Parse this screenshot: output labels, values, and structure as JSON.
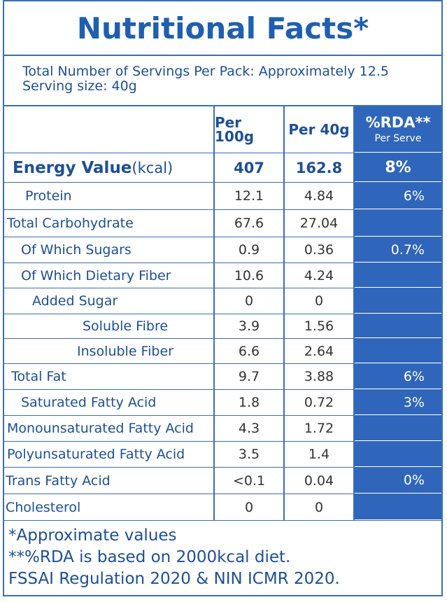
{
  "header": {
    "title": "Nutritional Facts*",
    "servings": "Total Number of Servings Per Pack: Approximately 12.5",
    "serving_size": "Serving size: 40g"
  },
  "table": {
    "columns": [
      "Per 100g",
      "Per 40g",
      "%RDA**"
    ],
    "rda_sub": "Per Serve",
    "rows": [
      {
        "label": "Energy Value",
        "unit": "(kcal)",
        "per100g": "407",
        "per40g": "162.8",
        "rda": "8%"
      },
      {
        "label": "Protein",
        "per100g": "12.1",
        "per40g": "4.84",
        "rda": "6%"
      },
      {
        "label": "Total Carbohydrate",
        "per100g": "67.6",
        "per40g": "27.04",
        "rda": null
      },
      {
        "label": "Of Which Sugars",
        "per100g": "0.9",
        "per40g": "0.36",
        "rda": "0.7%"
      },
      {
        "label": "Of Which Dietary Fiber",
        "per100g": "10.6",
        "per40g": "4.24",
        "rda": null
      },
      {
        "label": "Added Sugar",
        "per100g": "0",
        "per40g": "0",
        "rda": null
      },
      {
        "label": "Soluble Fibre",
        "per100g": "3.9",
        "per40g": "1.56",
        "rda": null
      },
      {
        "label": "Insoluble Fiber",
        "per100g": "6.6",
        "per40g": "2.64",
        "rda": null
      },
      {
        "label": "Total Fat",
        "per100g": "9.7",
        "per40g": "3.88",
        "rda": "6%"
      },
      {
        "label": "Saturated Fatty Acid",
        "per100g": "1.8",
        "per40g": "0.72",
        "rda": "3%"
      },
      {
        "label": "Monounsaturated Fatty Acid",
        "per100g": "4.3",
        "per40g": "1.72",
        "rda": null
      },
      {
        "label": "Polyunsaturated Fatty Acid",
        "per100g": "3.5",
        "per40g": "1.4",
        "rda": null
      },
      {
        "label": "Trans Fatty Acid",
        "per100g": "<0.1",
        "per40g": "0.04",
        "rda": "0%"
      },
      {
        "label": "Cholesterol",
        "per100g": "0",
        "per40g": "0",
        "rda": null
      }
    ]
  },
  "footer": [
    "*Approximate values",
    "**%RDA is based on 2000kcal diet.",
    "FSSAI Regulation 2020 & NIN ICMR 2020."
  ]
}
